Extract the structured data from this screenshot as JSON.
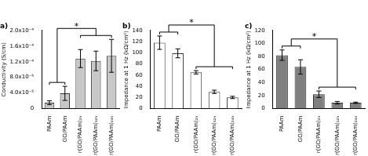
{
  "chart_data": [
    {
      "type": "bar",
      "title": "a)",
      "y_label": "Conductivity (S/cm)",
      "categories": [
        "PAAm",
        "GO/PAAm",
        "r(GO/PAAm)₂ₕ",
        "r(GO/PAAm)₁₂ₕ",
        "r(GO/PAAm)₂₄ₕ"
      ],
      "values": [
        1.5e-05,
        3.9e-05,
        0.000128,
        0.000122,
        0.000135
      ],
      "errors": [
        5e-06,
        1.8e-05,
        2.3e-05,
        2.5e-05,
        4.2e-05
      ],
      "color": "#c8c8c8",
      "ylim": [
        0,
        0.0002
      ],
      "yticks": [
        0,
        {
          "value": 4e-05,
          "label": "4.0x10⁻⁵"
        },
        {
          "value": 8e-05,
          "label": "8.0x10⁻⁵"
        },
        {
          "value": 0.00012,
          "label": "1.2x10⁻⁴"
        },
        {
          "value": 0.00016,
          "label": "1.6x10⁻⁴"
        },
        {
          "value": 0.0002,
          "label": "2.0x10⁻⁴"
        }
      ],
      "grid": false,
      "annotations": [
        {
          "text": "*",
          "from": [
            "PAAm",
            "GO/PAAm"
          ],
          "to": [
            "r(GO/PAAm)₂ₕ",
            "r(GO/PAAm)₁₂ₕ",
            "r(GO/PAAm)₂₄ₕ"
          ]
        }
      ]
    },
    {
      "type": "bar",
      "title": "b)",
      "y_label": "Impedance at 1 Hz (kΩ/cm²)",
      "categories": [
        "PAAm",
        "GO/PAAm",
        "r(GO/PAAm)₂ₕ",
        "r(GO/PAAm)₁₂ₕ",
        "r(GO/PAAm)₂₄ₕ"
      ],
      "values": [
        118,
        99,
        65,
        30,
        20
      ],
      "errors": [
        12,
        8,
        3,
        3,
        2
      ],
      "color": "#ffffff",
      "ylim": [
        0,
        140
      ],
      "yticks": [
        0,
        20,
        40,
        60,
        80,
        100,
        120,
        140
      ],
      "grid": false,
      "annotations": [
        {
          "text": "*",
          "from": [
            "PAAm",
            "GO/PAAm"
          ],
          "to": [
            "r(GO/PAAm)₂ₕ",
            "r(GO/PAAm)₁₂ₕ",
            "r(GO/PAAm)₂₄ₕ"
          ]
        }
      ]
    },
    {
      "type": "bar",
      "title": "c)",
      "y_label": "Impedance at 1 Hz (kΩ/cm²)",
      "categories": [
        "PAAm",
        "GO/PAAm",
        "r(GO/PAAm)₂ₕ",
        "r(GO/PAAm)₁₂ₕ",
        "r(GO/PAAm)₂₄ₕ"
      ],
      "values": [
        82,
        64,
        22,
        9,
        9
      ],
      "errors": [
        8,
        11,
        5,
        2,
        1
      ],
      "color": "#808080",
      "ylim": [
        0,
        120
      ],
      "yticks": [
        0,
        20,
        40,
        60,
        80,
        100,
        120
      ],
      "grid": false,
      "annotations": [
        {
          "text": "*",
          "from": [
            "PAAm",
            "GO/PAAm"
          ],
          "to": [
            "r(GO/PAAm)₂ₕ",
            "r(GO/PAAm)₁₂ₕ",
            "r(GO/PAAm)₂₄ₕ"
          ]
        }
      ]
    }
  ]
}
